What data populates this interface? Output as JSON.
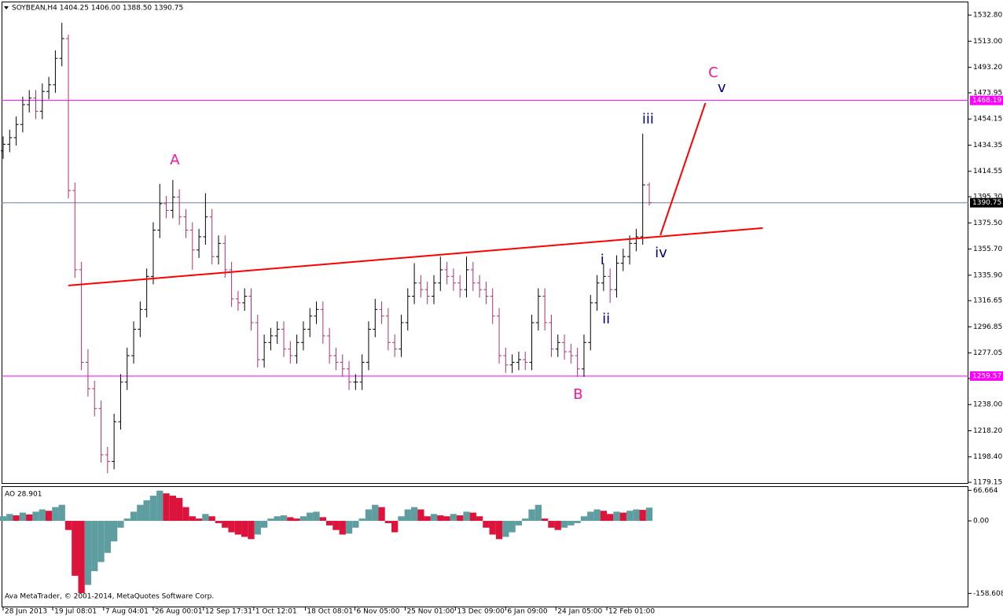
{
  "chart_data": [
    {
      "type": "ohlc",
      "title": "SOYBEAN,H4  1404.25 1406.00 1388.50 1390.75",
      "open": [
        1430,
        1435,
        1440,
        1450,
        1465,
        1470,
        1460,
        1475,
        1480,
        1500,
        1515,
        1400,
        1340,
        1270,
        1250,
        1235,
        1200,
        1195,
        1225,
        1255,
        1275,
        1295,
        1310,
        1335,
        1370,
        1390,
        1385,
        1395,
        1380,
        1370,
        1355,
        1365,
        1380,
        1350,
        1360,
        1340,
        1318,
        1315,
        1320,
        1300,
        1272,
        1285,
        1290,
        1295,
        1280,
        1275,
        1285,
        1295,
        1305,
        1310,
        1290,
        1275,
        1270,
        1265,
        1255,
        1255,
        1270,
        1295,
        1310,
        1305,
        1285,
        1280,
        1300,
        1320,
        1330,
        1325,
        1320,
        1330,
        1340,
        1335,
        1330,
        1325,
        1340,
        1330,
        1325,
        1320,
        1305,
        1275,
        1268,
        1270,
        1272,
        1270,
        1300,
        1320,
        1300,
        1280,
        1285,
        1278,
        1275,
        1265,
        1285,
        1315,
        1330,
        1335,
        1325,
        1345,
        1350,
        1360,
        1365,
        1404.25
      ],
      "high": [
        1441,
        1446,
        1456,
        1471,
        1476,
        1476,
        1481,
        1486,
        1506,
        1527,
        1518,
        1406,
        1346,
        1280,
        1256,
        1241,
        1206,
        1231,
        1261,
        1281,
        1301,
        1316,
        1341,
        1376,
        1405,
        1396,
        1408,
        1401,
        1386,
        1376,
        1371,
        1398,
        1386,
        1366,
        1366,
        1346,
        1324,
        1326,
        1326,
        1306,
        1291,
        1296,
        1301,
        1301,
        1286,
        1291,
        1301,
        1311,
        1316,
        1316,
        1296,
        1281,
        1276,
        1271,
        1261,
        1276,
        1301,
        1318,
        1316,
        1311,
        1291,
        1306,
        1326,
        1345,
        1336,
        1331,
        1336,
        1350,
        1346,
        1341,
        1336,
        1350,
        1346,
        1336,
        1331,
        1326,
        1311,
        1281,
        1276,
        1278,
        1278,
        1306,
        1326,
        1326,
        1306,
        1291,
        1291,
        1284,
        1281,
        1291,
        1321,
        1336,
        1345,
        1341,
        1351,
        1356,
        1366,
        1371,
        1443,
        1406
      ],
      "low": [
        1424,
        1429,
        1434,
        1444,
        1459,
        1454,
        1454,
        1469,
        1474,
        1494,
        1394,
        1334,
        1264,
        1244,
        1229,
        1194,
        1186,
        1189,
        1219,
        1249,
        1269,
        1289,
        1304,
        1329,
        1364,
        1379,
        1379,
        1374,
        1364,
        1340,
        1349,
        1359,
        1344,
        1344,
        1334,
        1312,
        1309,
        1309,
        1294,
        1266,
        1266,
        1279,
        1284,
        1274,
        1269,
        1269,
        1279,
        1289,
        1299,
        1284,
        1269,
        1264,
        1259,
        1249,
        1249,
        1249,
        1264,
        1289,
        1299,
        1279,
        1274,
        1274,
        1294,
        1314,
        1319,
        1314,
        1314,
        1324,
        1329,
        1324,
        1319,
        1319,
        1324,
        1319,
        1314,
        1299,
        1269,
        1262,
        1262,
        1264,
        1264,
        1264,
        1294,
        1294,
        1274,
        1274,
        1272,
        1269,
        1259,
        1259,
        1279,
        1309,
        1324,
        1315,
        1319,
        1339,
        1344,
        1354,
        1359,
        1388.5
      ],
      "close": [
        1435,
        1440,
        1450,
        1465,
        1470,
        1460,
        1475,
        1480,
        1500,
        1515,
        1400,
        1340,
        1270,
        1250,
        1235,
        1200,
        1195,
        1225,
        1255,
        1275,
        1295,
        1310,
        1335,
        1370,
        1390,
        1385,
        1395,
        1380,
        1370,
        1355,
        1365,
        1380,
        1350,
        1360,
        1340,
        1318,
        1315,
        1320,
        1300,
        1272,
        1285,
        1290,
        1295,
        1280,
        1275,
        1285,
        1295,
        1305,
        1310,
        1290,
        1275,
        1270,
        1265,
        1255,
        1255,
        1270,
        1295,
        1310,
        1305,
        1285,
        1280,
        1300,
        1320,
        1330,
        1325,
        1320,
        1330,
        1340,
        1335,
        1330,
        1325,
        1340,
        1330,
        1325,
        1320,
        1305,
        1275,
        1268,
        1270,
        1272,
        1270,
        1300,
        1320,
        1300,
        1280,
        1285,
        1278,
        1275,
        1265,
        1285,
        1315,
        1330,
        1335,
        1325,
        1345,
        1350,
        1360,
        1365,
        1404.25,
        1390.75
      ],
      "up_color": "#000000",
      "down_color": "#b0306e",
      "xlim": [
        -0.24,
        147.9
      ],
      "ylim": [
        1178,
        1543
      ],
      "yticks": [
        {
          "value": 1532.8,
          "label": "1532.80"
        },
        {
          "value": 1513,
          "label": "1513.00"
        },
        {
          "value": 1493.2,
          "label": "1493.20"
        },
        {
          "value": 1473.95,
          "label": "1473.95"
        },
        {
          "value": 1454.15,
          "label": "1454.15"
        },
        {
          "value": 1434.35,
          "label": "1434.35"
        },
        {
          "value": 1414.55,
          "label": "1414.55"
        },
        {
          "value": 1395.3,
          "label": "1395.30"
        },
        {
          "value": 1375.5,
          "label": "1375.50"
        },
        {
          "value": 1355.7,
          "label": "1355.70"
        },
        {
          "value": 1335.9,
          "label": "1335.90"
        },
        {
          "value": 1316.65,
          "label": "1316.65"
        },
        {
          "value": 1296.85,
          "label": "1296.85"
        },
        {
          "value": 1277.05,
          "label": "1277.05"
        },
        {
          "value": 1257.8,
          "label": "1257.80"
        },
        {
          "value": 1238,
          "label": "1238.00"
        },
        {
          "value": 1218.2,
          "label": "1218.20"
        },
        {
          "value": 1198.4,
          "label": "1198.40"
        },
        {
          "value": 1179.15,
          "label": "1179.15"
        }
      ],
      "xticks": [
        {
          "value": 0,
          "label": "28 Jun 2013"
        },
        {
          "value": 7.6,
          "label": "19 Jul 08:01"
        },
        {
          "value": 15.4,
          "label": "7 Aug 04:01"
        },
        {
          "value": 23,
          "label": "26 Aug 00:01"
        },
        {
          "value": 30.7,
          "label": "12 Sep 17:31"
        },
        {
          "value": 38.4,
          "label": "1 Oct 12:01"
        },
        {
          "value": 46.3,
          "label": "18 Oct 08:01"
        },
        {
          "value": 53.9,
          "label": "6 Nov 05:00"
        },
        {
          "value": 61.6,
          "label": "25 Nov 01:00"
        },
        {
          "value": 69.3,
          "label": "13 Dec 09:00"
        },
        {
          "value": 77,
          "label": "6 Jan 09:00"
        },
        {
          "value": 84.7,
          "label": "24 Jan 05:00"
        },
        {
          "value": 92.5,
          "label": "12 Feb 01:00"
        }
      ],
      "levels": [
        {
          "value": 1468.19,
          "color": "#ff00ff"
        },
        {
          "value": 1390.75,
          "color": "#708090"
        },
        {
          "value": 1259.57,
          "color": "#ff00ff"
        }
      ],
      "trend_lines": [
        {
          "x": [
            10.0,
            116.4
          ],
          "y": [
            1328.1,
            1371.6
          ],
          "color": "#ff0000"
        },
        {
          "x": [
            100.7,
            107.6
          ],
          "y": [
            1366.2,
            1466.2
          ],
          "color": "#ff0000"
        }
      ],
      "annotations": [
        {
          "text": "A",
          "x": 26.3,
          "y": 1422.7,
          "color": "#ff1493"
        },
        {
          "text": "B",
          "x": 88.1,
          "y": 1245.3,
          "color": "#ff1493"
        },
        {
          "text": "C",
          "x": 108.8,
          "y": 1488.8,
          "color": "#ff1493"
        },
        {
          "text": "i",
          "x": 91.8,
          "y": 1347.1,
          "color": "#000080"
        },
        {
          "text": "ii",
          "x": 92.4,
          "y": 1302.5,
          "color": "#000080"
        },
        {
          "text": "iii",
          "x": 98.8,
          "y": 1453.7,
          "color": "#000080"
        },
        {
          "text": "iv",
          "x": 100.8,
          "y": 1352.5,
          "color": "#000080"
        },
        {
          "text": "v",
          "x": 110.1,
          "y": 1477.5,
          "color": "#000080"
        }
      ]
    },
    {
      "type": "histogram",
      "title": "AO 28.901",
      "values": [
        10,
        15,
        12,
        18,
        14,
        20,
        25,
        22,
        30,
        35,
        -20,
        -120,
        -158,
        -140,
        -110,
        -90,
        -70,
        -45,
        -15,
        5,
        20,
        35,
        45,
        55,
        66,
        60,
        55,
        50,
        30,
        10,
        5,
        15,
        10,
        -5,
        -15,
        -25,
        -30,
        -35,
        -40,
        -30,
        -15,
        5,
        10,
        12,
        8,
        5,
        10,
        18,
        20,
        8,
        -10,
        -20,
        -30,
        -28,
        -15,
        5,
        25,
        35,
        30,
        -5,
        -25,
        10,
        25,
        30,
        25,
        10,
        15,
        12,
        10,
        15,
        12,
        20,
        18,
        10,
        -15,
        -30,
        -40,
        -35,
        -25,
        -10,
        5,
        25,
        35,
        5,
        -15,
        -20,
        -15,
        -10,
        -5,
        10,
        20,
        25,
        22,
        15,
        20,
        18,
        22,
        25,
        24,
        28.901
      ],
      "up_color": "#5f9ea0",
      "down_color": "#dc143c",
      "ylim": [
        -189,
        74
      ],
      "yticks": [
        66.664,
        {
          "value": 0,
          "label": "0.00"
        },
        -158.608
      ]
    }
  ],
  "footer": "Ava MetaTrader, © 2001-2014, MetaQuotes Software Corp."
}
